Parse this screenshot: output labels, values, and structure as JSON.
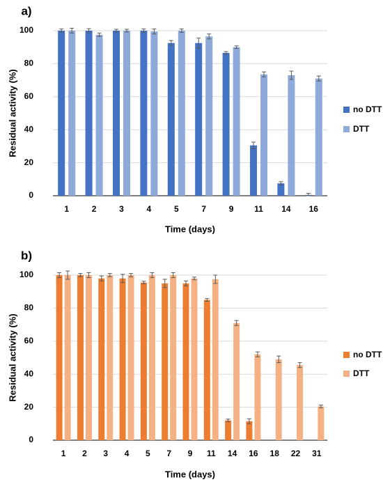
{
  "chart_data": [
    {
      "type": "bar",
      "panel_label": "a)",
      "xlabel": "Time (days)",
      "ylabel": "Residual activity (%)",
      "ylim": [
        0,
        100
      ],
      "yticks": [
        0,
        20,
        40,
        60,
        80,
        100
      ],
      "grid": true,
      "legend_position": "right",
      "categories": [
        "1",
        "2",
        "3",
        "4",
        "5",
        "7",
        "9",
        "11",
        "14",
        "16"
      ],
      "series": [
        {
          "name": "no DTT",
          "color": "#4472c4",
          "values": [
            100,
            100,
            100,
            100,
            92.5,
            92.5,
            86.5,
            30.5,
            7.5,
            0.5
          ],
          "errors": [
            1,
            1.2,
            0.8,
            1,
            1.5,
            3,
            0.8,
            2,
            1,
            1
          ]
        },
        {
          "name": "DTT",
          "color": "#8eaadb",
          "values": [
            100,
            97.5,
            100,
            99.5,
            100,
            96.5,
            90,
            73.5,
            73,
            71
          ],
          "errors": [
            1.5,
            1,
            0.8,
            1.5,
            1,
            1.5,
            0.8,
            1.5,
            2.5,
            1.5
          ]
        }
      ]
    },
    {
      "type": "bar",
      "panel_label": "b)",
      "xlabel": "Time (days)",
      "ylabel": "Residual activity (%)",
      "ylim": [
        0,
        100
      ],
      "yticks": [
        0,
        20,
        40,
        60,
        80,
        100
      ],
      "grid": true,
      "legend_position": "right",
      "categories": [
        "1",
        "2",
        "3",
        "4",
        "5",
        "7",
        "9",
        "11",
        "14",
        "16",
        "18",
        "22",
        "31"
      ],
      "series": [
        {
          "name": "no DTT",
          "color": "#ed7d31",
          "values": [
            100,
            100,
            98,
            98,
            95.5,
            95,
            95,
            85,
            12,
            11.5,
            null,
            null,
            null
          ],
          "errors": [
            1.5,
            1,
            1.5,
            2.5,
            0.8,
            2.5,
            1.5,
            0.8,
            0.8,
            1.5,
            null,
            null,
            null
          ]
        },
        {
          "name": "DTT",
          "color": "#f4b183",
          "values": [
            100,
            100,
            100,
            100,
            100,
            100,
            98,
            97.5,
            71,
            52,
            49,
            45.5,
            20.5
          ],
          "errors": [
            2.5,
            1.5,
            1,
            1,
            1.5,
            1.5,
            0.8,
            2.5,
            1.5,
            1.5,
            2,
            1.5,
            0.8
          ]
        }
      ]
    }
  ]
}
